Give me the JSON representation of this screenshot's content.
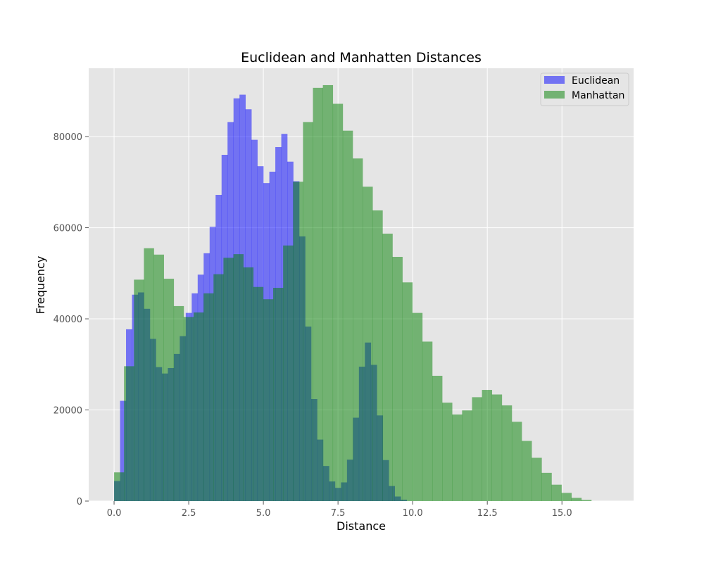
{
  "chart_data": {
    "type": "bar",
    "title": "Euclidean and Manhatten Distances",
    "xlabel": "Distance",
    "ylabel": "Frequency",
    "xlim": [
      -0.85,
      17.4
    ],
    "ylim": [
      0,
      95000
    ],
    "x_ticks": [
      0.0,
      2.5,
      5.0,
      7.5,
      10.0,
      12.5,
      15.0
    ],
    "x_tick_labels": [
      "0.0",
      "2.5",
      "5.0",
      "7.5",
      "10.0",
      "12.5",
      "15.0"
    ],
    "y_ticks": [
      0,
      20000,
      40000,
      60000,
      80000
    ],
    "y_tick_labels": [
      "0",
      "20000",
      "40000",
      "60000",
      "80000"
    ],
    "grid": true,
    "legend_position": "top-right",
    "series": [
      {
        "name": "Euclidean",
        "color": "#0000ff",
        "opacity": 0.5,
        "bin_start": 0.0,
        "bin_width": 0.2,
        "values": [
          4400,
          22000,
          37700,
          45300,
          45800,
          42200,
          35600,
          29400,
          28000,
          29200,
          32300,
          36200,
          41300,
          45600,
          49700,
          54400,
          60200,
          67200,
          76000,
          83200,
          88400,
          89200,
          86000,
          79300,
          73500,
          69800,
          72300,
          77700,
          80600,
          74500,
          70200,
          58100,
          38300,
          22400,
          13500,
          7700,
          4300,
          2900,
          4100,
          9100,
          18300,
          29500,
          34800,
          29900,
          18800,
          9000,
          3300,
          1000,
          300
        ]
      },
      {
        "name": "Manhattan",
        "color": "#008000",
        "opacity": 0.5,
        "bin_start": 0.0,
        "bin_width": 0.333,
        "values": [
          6300,
          29600,
          48600,
          55500,
          54100,
          48800,
          42800,
          40400,
          41400,
          45600,
          49800,
          53400,
          54200,
          51300,
          47000,
          44300,
          46800,
          56100,
          70100,
          83200,
          90700,
          91300,
          87200,
          81300,
          75200,
          69000,
          63800,
          58700,
          53600,
          48000,
          41300,
          35000,
          27500,
          21600,
          19000,
          19900,
          22800,
          24400,
          23400,
          21000,
          17400,
          13200,
          9500,
          6200,
          3600,
          1800,
          700,
          250
        ]
      }
    ]
  }
}
